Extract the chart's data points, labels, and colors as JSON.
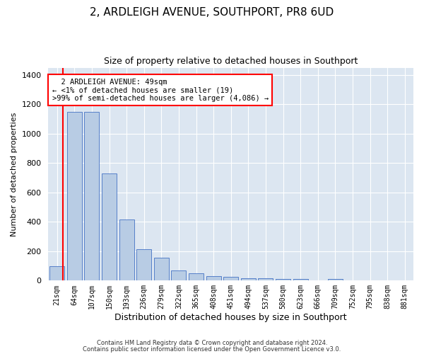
{
  "title": "2, ARDLEIGH AVENUE, SOUTHPORT, PR8 6UD",
  "subtitle": "Size of property relative to detached houses in Southport",
  "xlabel": "Distribution of detached houses by size in Southport",
  "ylabel": "Number of detached properties",
  "categories": [
    "21sqm",
    "64sqm",
    "107sqm",
    "150sqm",
    "193sqm",
    "236sqm",
    "279sqm",
    "322sqm",
    "365sqm",
    "408sqm",
    "451sqm",
    "494sqm",
    "537sqm",
    "580sqm",
    "623sqm",
    "666sqm",
    "709sqm",
    "752sqm",
    "795sqm",
    "838sqm",
    "881sqm"
  ],
  "values": [
    100,
    1150,
    1150,
    730,
    415,
    215,
    155,
    70,
    50,
    30,
    25,
    18,
    15,
    10,
    10,
    2,
    10,
    2,
    2,
    2,
    2
  ],
  "bar_color": "#b8cce4",
  "bar_edge_color": "#4472c4",
  "marker_color": "#ff0000",
  "ylim": [
    0,
    1450
  ],
  "yticks": [
    0,
    200,
    400,
    600,
    800,
    1000,
    1200,
    1400
  ],
  "bg_color": "#dce6f1",
  "annotation_text": "  2 ARDLEIGH AVENUE: 49sqm\n← <1% of detached houses are smaller (19)\n>99% of semi-detached houses are larger (4,086) →",
  "annotation_box_color": "#ffffff",
  "annotation_box_edge_color": "#ff0000",
  "footer_line1": "Contains HM Land Registry data © Crown copyright and database right 2024.",
  "footer_line2": "Contains public sector information licensed under the Open Government Licence v3.0."
}
